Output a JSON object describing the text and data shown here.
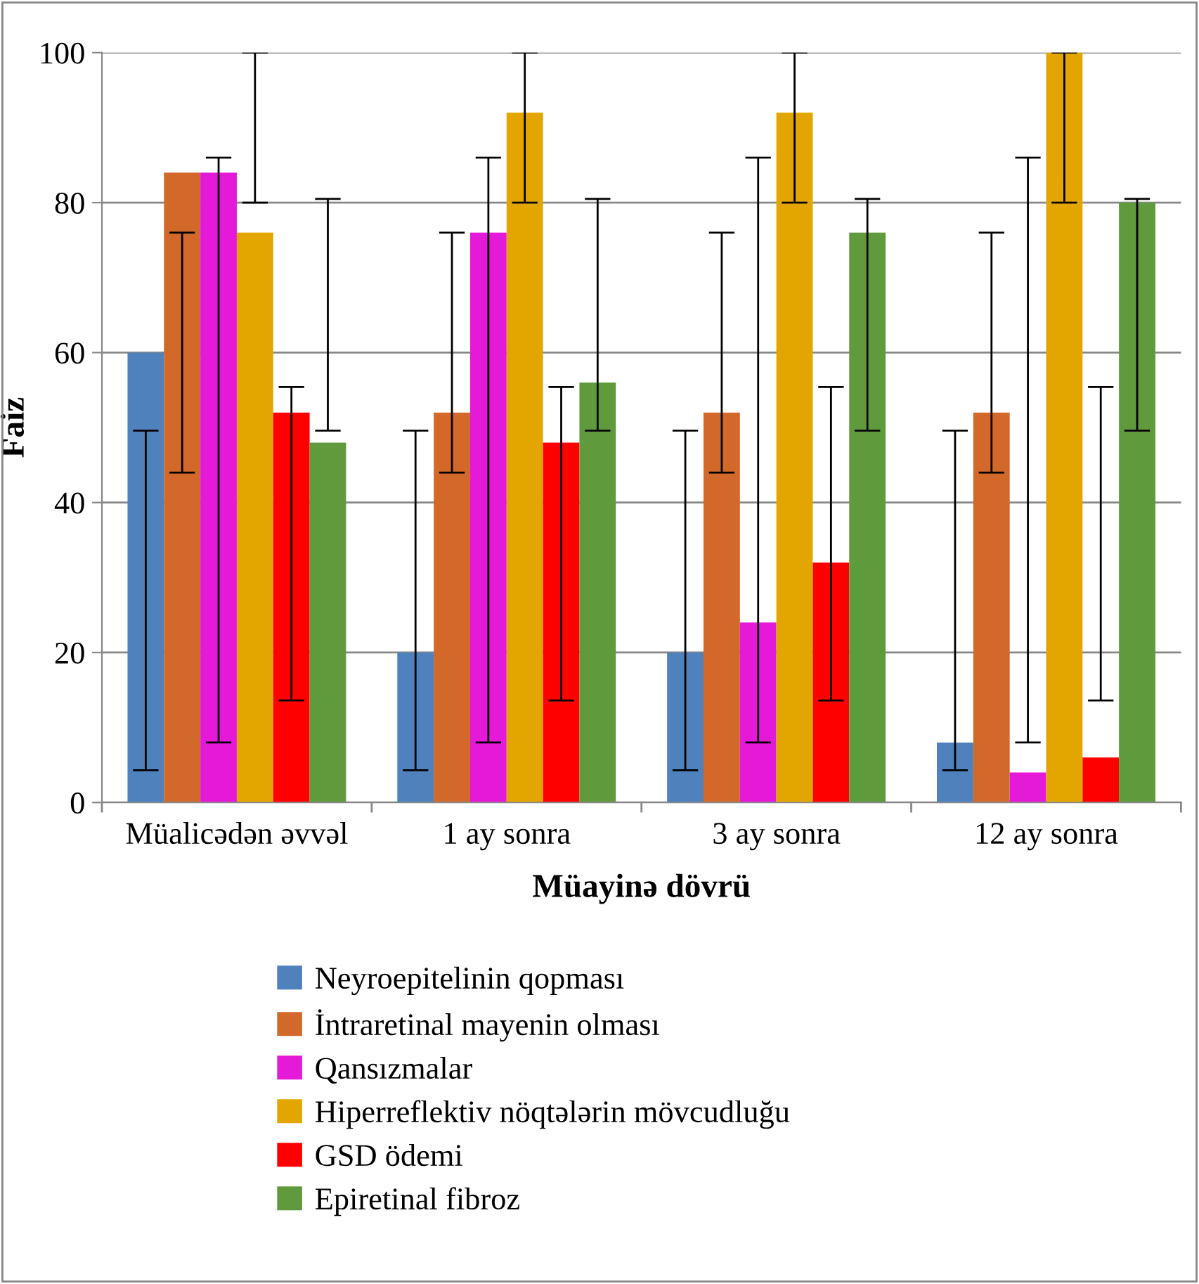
{
  "chart_data": {
    "type": "bar",
    "xlabel": "Müayinə dövrü",
    "ylabel": "Faiz",
    "categories": [
      "Müalicədən əvvəl",
      "1 ay sonra",
      "3 ay sonra",
      "12 ay sonra"
    ],
    "ylim": [
      0,
      100
    ],
    "yticks": [
      0,
      20,
      40,
      60,
      80,
      100
    ],
    "grid": "y",
    "legend": "bottom",
    "series": [
      {
        "name": "Neyroepitelinin qopması",
        "color": "#4f81bd",
        "values": [
          60,
          20,
          20,
          8
        ],
        "errors": [
          [
            4.3,
            49.6
          ],
          [
            4.3,
            49.6
          ],
          [
            4.3,
            49.6
          ],
          [
            4.3,
            49.6
          ]
        ]
      },
      {
        "name": "İntraretinal mayenin olması",
        "color": "#d2692a",
        "values": [
          84,
          52,
          52,
          52
        ],
        "errors": [
          [
            44,
            76
          ],
          [
            44,
            76
          ],
          [
            44,
            76
          ],
          [
            44,
            76
          ]
        ]
      },
      {
        "name": "Qansızmalar",
        "color": "#e41ad8",
        "values": [
          84,
          76,
          24,
          4
        ],
        "errors": [
          [
            8,
            86
          ],
          [
            8,
            86
          ],
          [
            8,
            86
          ],
          [
            8,
            86
          ]
        ]
      },
      {
        "name": "Hiperreflektiv nöqtələrin mövcudluğu",
        "color": "#e3a600",
        "values": [
          76,
          92,
          92,
          100
        ],
        "errors": [
          [
            80,
            100
          ],
          [
            80,
            100
          ],
          [
            80,
            100
          ],
          [
            80,
            100
          ]
        ]
      },
      {
        "name": "GSD ödemi",
        "color": "#ff0000",
        "values": [
          52,
          48,
          32,
          6
        ],
        "errors": [
          [
            13.6,
            55.4
          ],
          [
            13.6,
            55.4
          ],
          [
            13.6,
            55.4
          ],
          [
            13.6,
            55.4
          ]
        ]
      },
      {
        "name": "Epiretinal fibroz",
        "color": "#5f9b3d",
        "values": [
          48,
          56,
          76,
          80
        ],
        "errors": [
          [
            49.6,
            80.5
          ],
          [
            49.6,
            80.5
          ],
          [
            49.6,
            80.5
          ],
          [
            49.6,
            80.5
          ]
        ]
      }
    ]
  }
}
